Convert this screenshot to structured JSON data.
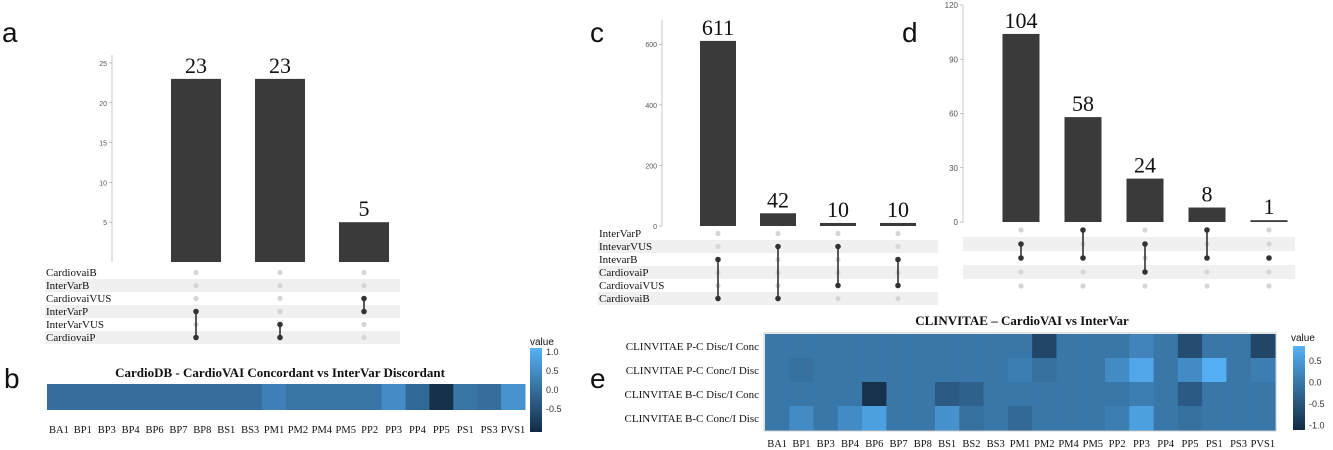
{
  "panels": {
    "a": "a",
    "b": "b",
    "c": "c",
    "d": "d",
    "e": "e"
  },
  "chart_data": [
    {
      "id": "a",
      "type": "bar",
      "categories": [
        "CardiovaiP+InterVarP",
        "CardiovaiP+InterVarVUS",
        "CardiovaiVUS+InterVarP"
      ],
      "values": [
        23,
        23,
        5
      ],
      "ylim": [
        0,
        26
      ],
      "yticks": [
        5,
        10,
        15,
        20,
        25
      ],
      "sets": [
        "CardiovaiB",
        "InterVarB",
        "CardiovaiVUS",
        "InterVarP",
        "InterVarVUS",
        "CardiovaiP"
      ],
      "membership": [
        [
          3,
          5
        ],
        [
          4,
          5
        ],
        [
          2,
          3
        ]
      ]
    },
    {
      "id": "b",
      "type": "heatmap",
      "title": "CardioDB - CardioVAI Concordant  vs InterVar Discordant",
      "x": [
        "BA1",
        "BP1",
        "BP3",
        "BP4",
        "BP6",
        "BP7",
        "BP8",
        "BS1",
        "BS3",
        "PM1",
        "PM2",
        "PM4",
        "PM5",
        "PP2",
        "PP3",
        "PP4",
        "PP5",
        "PS1",
        "PS3",
        "PVS1"
      ],
      "values": [
        0,
        0,
        0,
        0,
        0,
        0,
        0,
        0,
        0,
        0.3,
        0.1,
        0.1,
        0.1,
        0.1,
        0.5,
        -0.1,
        -1.0,
        0.1,
        0,
        0.6
      ],
      "legend": {
        "title": "value",
        "ticks": [
          "1.0",
          "0.5",
          "0.0",
          "-0.5"
        ],
        "range": [
          -1,
          1
        ]
      }
    },
    {
      "id": "c",
      "type": "bar",
      "categories": [
        "InterVarB+CardiovaiP+CardiovaiB",
        "IntevarVUS+CardiovaiB",
        "IntevarVUS+CardiovaiVUS",
        "IntevarB+CardiovaiVUS"
      ],
      "values": [
        611,
        42,
        10,
        10
      ],
      "ylim": [
        0,
        680
      ],
      "yticks": [
        0,
        200,
        400,
        600
      ],
      "sets": [
        "InterVarP",
        "IntevarVUS",
        "IntevarB",
        "CardiovaiP",
        "CardiovaiVUS",
        "CardiovaiB"
      ],
      "membership": [
        [
          2,
          5
        ],
        [
          1,
          5
        ],
        [
          1,
          4
        ],
        [
          2,
          4
        ]
      ]
    },
    {
      "id": "d",
      "type": "bar",
      "categories": [
        "1",
        "2",
        "3",
        "4",
        "5"
      ],
      "values": [
        104,
        58,
        24,
        8,
        1
      ],
      "ylim": [
        0,
        120
      ],
      "yticks": [
        0,
        30,
        60,
        90,
        120
      ],
      "membership": [
        [
          1,
          2
        ],
        [
          0,
          2
        ],
        [
          1,
          3
        ],
        [
          0,
          2
        ],
        [
          2,
          2
        ]
      ]
    },
    {
      "id": "e",
      "type": "heatmap",
      "title": "CLINVITAE – CardioVAI vs InterVar",
      "x": [
        "BA1",
        "BP1",
        "BP3",
        "BP4",
        "BP6",
        "BP7",
        "BP8",
        "BS1",
        "BS2",
        "BS3",
        "PM1",
        "PM2",
        "PM4",
        "PM5",
        "PP2",
        "PP3",
        "PP4",
        "PP5",
        "PS1",
        "PS3",
        "PVS1"
      ],
      "y": [
        "CLINVITAE P-C Disc/I Conc",
        "CLINVITAE P-C Conc/I Disc",
        "CLINVITAE B-C Disc/I Conc",
        "CLINVITAE B-C Conc/I Disc"
      ],
      "z": [
        [
          0,
          0,
          0,
          0,
          0,
          0,
          0,
          0,
          0,
          0,
          0,
          -0.7,
          0,
          0,
          0,
          0.2,
          0,
          -0.6,
          0,
          0,
          -0.7
        ],
        [
          0,
          -0.1,
          0,
          0,
          0,
          0,
          0,
          0,
          0,
          0,
          0.1,
          -0.1,
          0,
          0,
          0.3,
          0.7,
          0,
          0.3,
          0.8,
          0,
          0.1
        ],
        [
          0,
          0,
          0,
          0,
          -1.0,
          0,
          0,
          -0.4,
          -0.3,
          0,
          0,
          0,
          0,
          0,
          0,
          0.1,
          0,
          -0.4,
          0,
          0,
          0
        ],
        [
          0,
          0.3,
          0,
          0.3,
          0.6,
          0,
          0,
          0.4,
          -0.1,
          0,
          -0.2,
          0,
          0,
          0,
          0.1,
          0.6,
          0,
          -0.1,
          0,
          0,
          0
        ]
      ],
      "legend": {
        "title": "value",
        "ticks": [
          "0.5",
          "0.0",
          "-0.5",
          "-1.0"
        ],
        "range": [
          -1.1,
          0.8
        ]
      }
    }
  ]
}
